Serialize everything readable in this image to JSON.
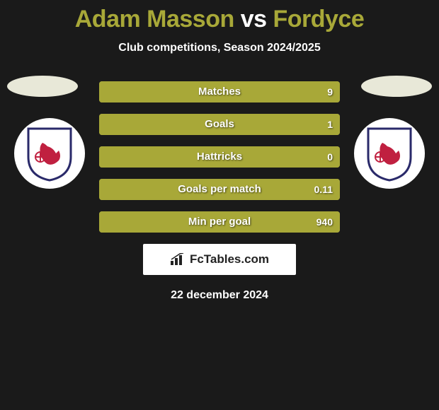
{
  "title": {
    "player1": "Adam Masson",
    "vs": " vs ",
    "player2": "Fordyce",
    "color1": "#a8a838",
    "color_vs": "#ffffff",
    "color2": "#a8a838"
  },
  "subtitle": "Club competitions, Season 2024/2025",
  "avatar_oval_color": "#e8e8d8",
  "crest": {
    "bg": "#ffffff",
    "shield_border": "#2a2a6a",
    "lion_color": "#c02040"
  },
  "bars": {
    "track_color": "#a8a838",
    "left_fill_color": "#a8a838",
    "right_fill_color": "#a8a838",
    "text_color": "#ffffff",
    "rows": [
      {
        "label": "Matches",
        "left": "",
        "right": "9",
        "left_pct": 0,
        "right_pct": 100
      },
      {
        "label": "Goals",
        "left": "",
        "right": "1",
        "left_pct": 0,
        "right_pct": 100
      },
      {
        "label": "Hattricks",
        "left": "",
        "right": "0",
        "left_pct": 0,
        "right_pct": 100
      },
      {
        "label": "Goals per match",
        "left": "",
        "right": "0.11",
        "left_pct": 0,
        "right_pct": 100
      },
      {
        "label": "Min per goal",
        "left": "",
        "right": "940",
        "left_pct": 0,
        "right_pct": 100
      }
    ]
  },
  "brand": "FcTables.com",
  "date": "22 december 2024",
  "background": "#1a1a1a"
}
